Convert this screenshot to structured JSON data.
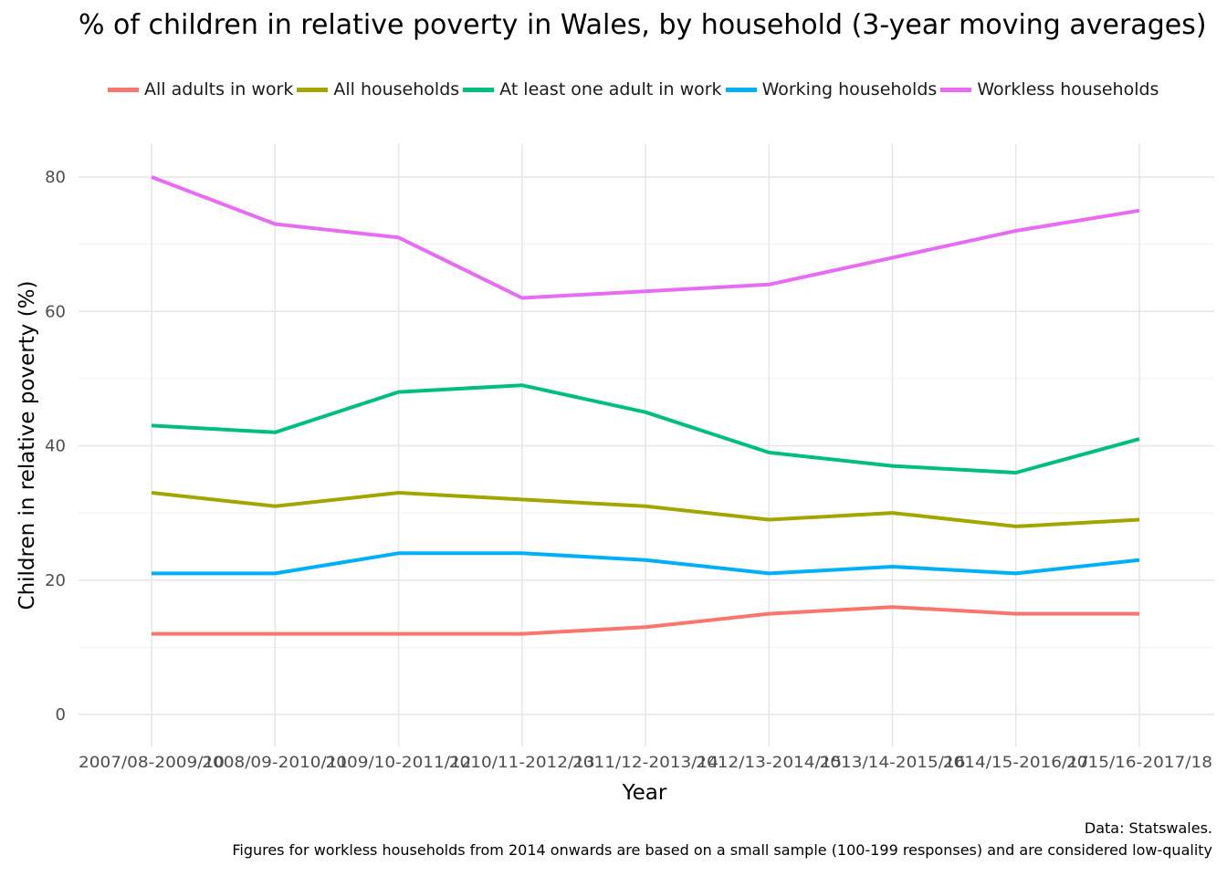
{
  "chart_data": {
    "type": "line",
    "title": "% of children in relative poverty in Wales, by household (3-year moving averages)",
    "xlabel": "Year",
    "ylabel": "Children in relative poverty (%)",
    "ylim": [
      0,
      80
    ],
    "yticks": [
      0,
      20,
      40,
      60,
      80
    ],
    "grid": true,
    "legend_position": "top",
    "categories": [
      "2007/08-2009/10",
      "2008/09-2010/11",
      "2009/10-2011/12",
      "2010/11-2012/13",
      "2011/12-2013/14",
      "2012/13-2014/15",
      "2013/14-2015/16",
      "2014/15-2016/17",
      "2015/16-2017/18"
    ],
    "series": [
      {
        "name": "All adults in work",
        "color": "#F8766D",
        "values": [
          12,
          12,
          12,
          12,
          13,
          15,
          16,
          15,
          15
        ]
      },
      {
        "name": "All households",
        "color": "#A3A500",
        "values": [
          33,
          31,
          33,
          32,
          31,
          29,
          30,
          28,
          29
        ]
      },
      {
        "name": "At least one adult in work",
        "color": "#00BF7D",
        "values": [
          43,
          42,
          48,
          49,
          45,
          39,
          37,
          36,
          41
        ]
      },
      {
        "name": "Working households",
        "color": "#00B0F6",
        "values": [
          21,
          21,
          24,
          24,
          23,
          21,
          22,
          21,
          23
        ]
      },
      {
        "name": "Workless households",
        "color": "#E76BF3",
        "values": [
          80,
          73,
          71,
          62,
          63,
          64,
          68,
          72,
          75
        ]
      }
    ]
  },
  "caption": {
    "line1": "Data: Statswales.",
    "line2": "Figures for workless households from 2014 onwards are based on a small sample (100-199 responses) and are considered low-quality"
  }
}
